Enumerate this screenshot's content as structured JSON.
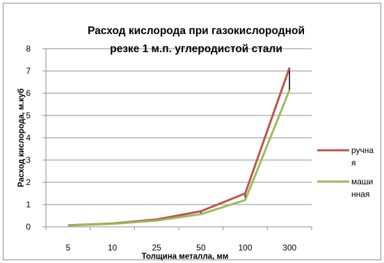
{
  "chart_data": {
    "type": "line",
    "title_lines": [
      "Расход кислорода при газокислородной",
      "резке 1 м.п. углеродистой стали"
    ],
    "xlabel": "Толщина металла, мм",
    "ylabel": "Расход кислорода, м.куб",
    "categories": [
      "5",
      "10",
      "25",
      "50",
      "100",
      "300"
    ],
    "ylim": [
      0,
      8
    ],
    "yticks": [
      "0",
      "1",
      "2",
      "3",
      "4",
      "5",
      "6",
      "7",
      "8"
    ],
    "grid": true,
    "legend_position": "right",
    "series": [
      {
        "name_lines": [
          "ручна",
          "я"
        ],
        "color": "#c0504d",
        "values": [
          0.07,
          0.15,
          0.33,
          0.7,
          1.5,
          7.15
        ]
      },
      {
        "name_lines": [
          "маши",
          "нная"
        ],
        "color": "#9bbb59",
        "values": [
          0.06,
          0.13,
          0.28,
          0.57,
          1.2,
          6.15
        ]
      }
    ]
  }
}
